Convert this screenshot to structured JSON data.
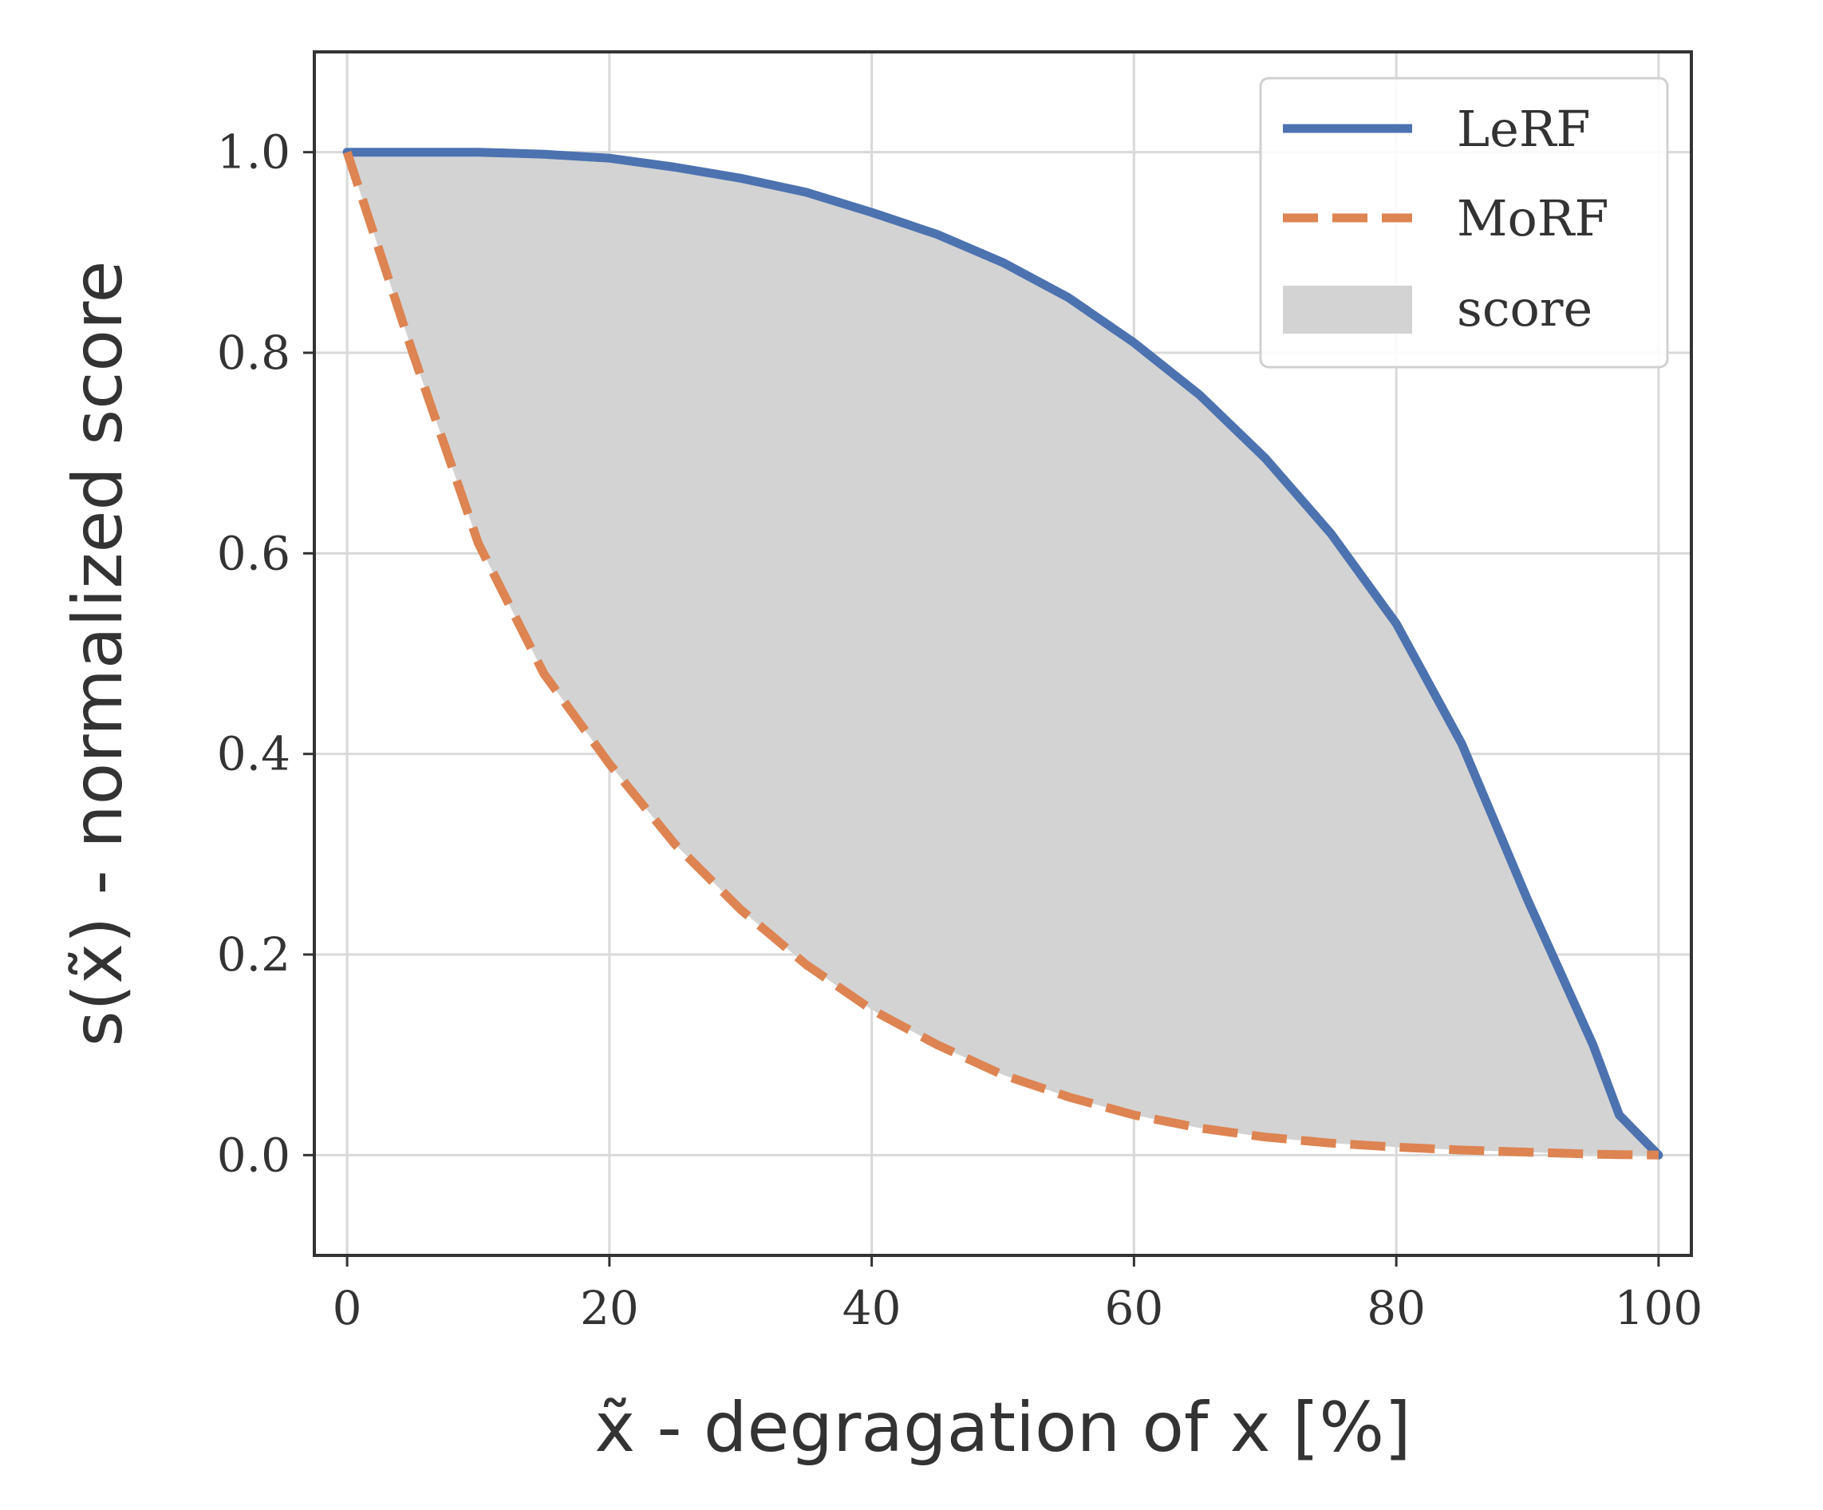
{
  "chart_data": {
    "type": "line",
    "xlabel": "x̃ - degragation of x [%]",
    "ylabel": "s(x̃) - normalized score",
    "xlim": [
      -2.5,
      102.5
    ],
    "ylim": [
      -0.1,
      1.1
    ],
    "x_ticks": [
      "0",
      "20",
      "40",
      "60",
      "80",
      "100"
    ],
    "y_ticks": [
      "0.0",
      "0.2",
      "0.4",
      "0.6",
      "0.8",
      "1.0"
    ],
    "grid": true,
    "legend_position": "top-right",
    "x": [
      0,
      5,
      10,
      15,
      20,
      25,
      30,
      35,
      40,
      45,
      50,
      55,
      60,
      65,
      70,
      75,
      80,
      85,
      90,
      95,
      97,
      100
    ],
    "series": [
      {
        "name": "LeRF",
        "style": "solid",
        "color": "#4c72b0",
        "values": [
          1.0,
          1.0,
          1.0,
          0.998,
          0.994,
          0.985,
          0.974,
          0.96,
          0.94,
          0.918,
          0.89,
          0.855,
          0.81,
          0.758,
          0.695,
          0.62,
          0.53,
          0.41,
          0.255,
          0.11,
          0.04,
          0.0
        ]
      },
      {
        "name": "MoRF",
        "style": "dashed",
        "color": "#dd8452",
        "values": [
          1.0,
          0.8,
          0.61,
          0.48,
          0.39,
          0.31,
          0.245,
          0.19,
          0.145,
          0.11,
          0.08,
          0.058,
          0.04,
          0.027,
          0.018,
          0.012,
          0.008,
          0.005,
          0.003,
          0.001,
          0.0005,
          0.0
        ]
      }
    ],
    "fill": {
      "name": "score",
      "between": [
        "LeRF",
        "MoRF"
      ],
      "color": "#d3d3d3"
    }
  },
  "colors": {
    "grid": "#d9d9d9",
    "frame": "#333333"
  }
}
